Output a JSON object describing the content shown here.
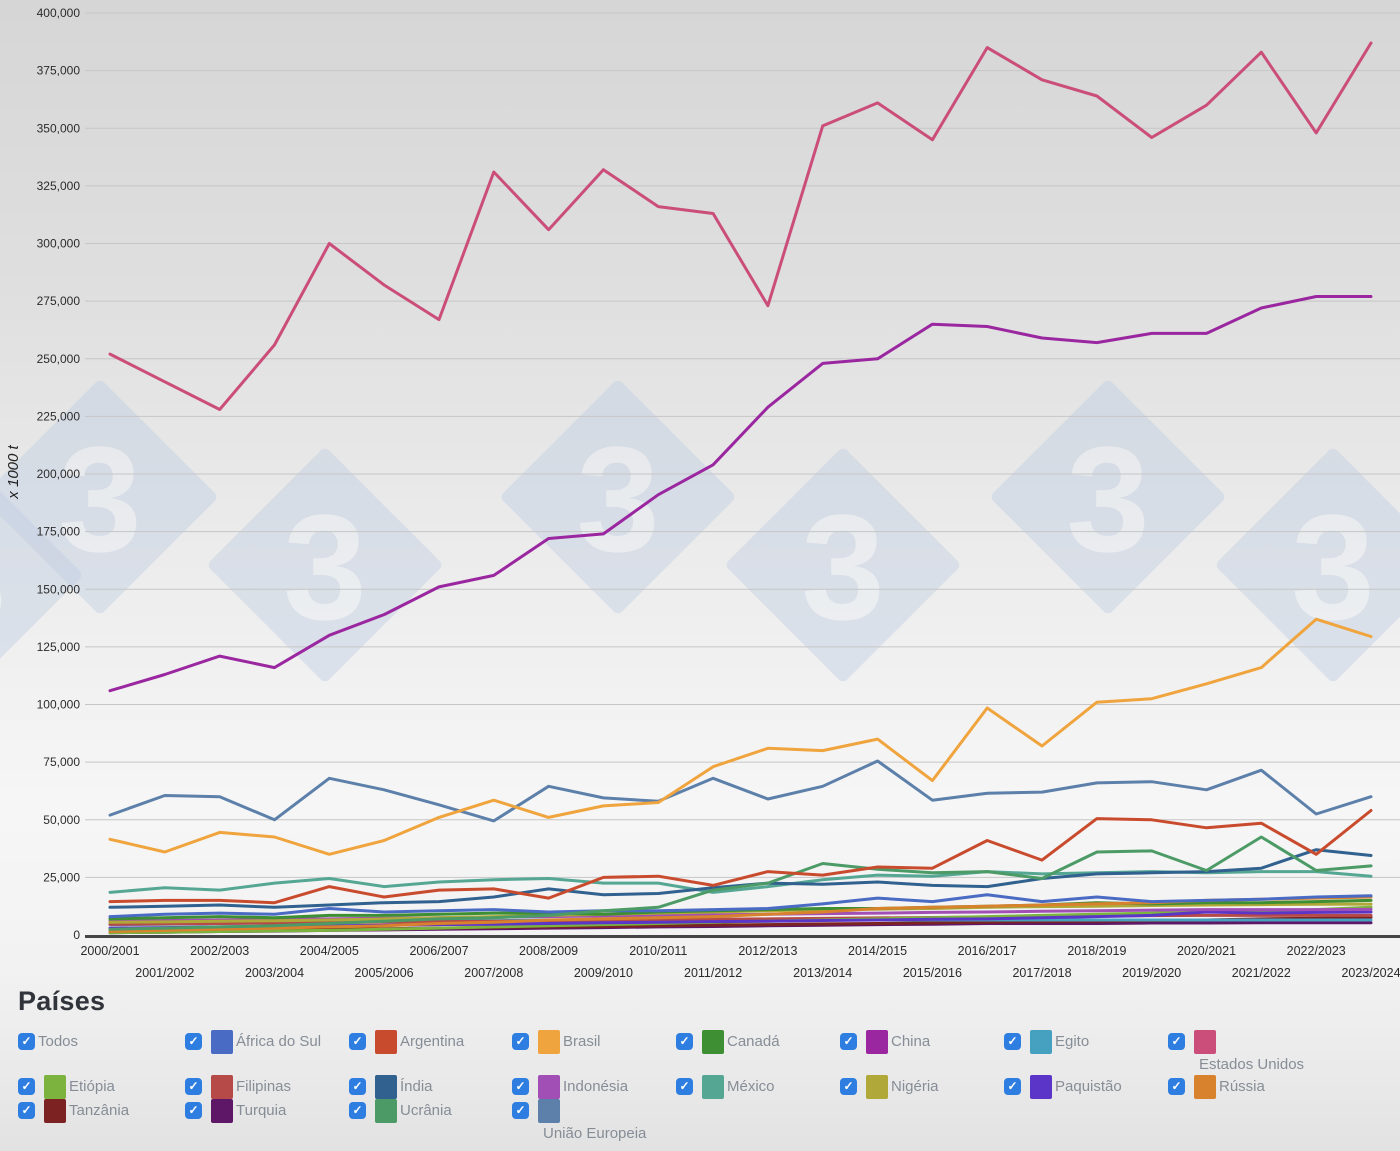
{
  "legend": {
    "title": "Países",
    "items": [
      {
        "label": "Todos",
        "color": null
      },
      {
        "label": "África do Sul",
        "color": "#4a6bc4"
      },
      {
        "label": "Argentina",
        "color": "#c94b2e"
      },
      {
        "label": "Brasil",
        "color": "#f0a43e"
      },
      {
        "label": "Canadá",
        "color": "#3e8e33"
      },
      {
        "label": "China",
        "color": "#9a27a0"
      },
      {
        "label": "Egito",
        "color": "#46a0c0"
      },
      {
        "label": "Estados Unidos",
        "color": "#cb4d79",
        "label_below": true
      },
      {
        "label": "Etiópia",
        "color": "#7cb33f"
      },
      {
        "label": "Filipinas",
        "color": "#b54a48"
      },
      {
        "label": "Índia",
        "color": "#30618f"
      },
      {
        "label": "Indonésia",
        "color": "#a24fb5"
      },
      {
        "label": "México",
        "color": "#55a794"
      },
      {
        "label": "Nigéria",
        "color": "#b0a838"
      },
      {
        "label": "Paquistão",
        "color": "#5b35c8"
      },
      {
        "label": "Rússia",
        "color": "#d8822e"
      },
      {
        "label": "Tanzânia",
        "color": "#7c2222"
      },
      {
        "label": "Turquia",
        "color": "#5d1766"
      },
      {
        "label": "Ucrânia",
        "color": "#4c9b66"
      },
      {
        "label": "União Europeia",
        "color": "#5d80aa",
        "label_below": true
      }
    ],
    "checkbox_color": "#2e7de1",
    "checkbox_glyph": "✓"
  },
  "watermark": {
    "glyph": "3",
    "shape": "diamond",
    "fill": "#bfcde2",
    "glyph_fill": "#e8eef6"
  },
  "chart_data": {
    "type": "line",
    "ylabel": "x 1000 t",
    "ylim": [
      0,
      400000
    ],
    "ytick_step": 25000,
    "grid": true,
    "legend_position": "bottom",
    "x_label_stagger": true,
    "categories": [
      "2000/2001",
      "2001/2002",
      "2002/2003",
      "2003/2004",
      "2004/2005",
      "2005/2006",
      "2006/2007",
      "2007/2008",
      "2008/2009",
      "2009/2010",
      "2010/2011",
      "2011/2012",
      "2012/2013",
      "2013/2014",
      "2014/2015",
      "2015/2016",
      "2016/2017",
      "2017/2018",
      "2018/2019",
      "2019/2020",
      "2020/2021",
      "2021/2022",
      "2022/2023",
      "2023/2024"
    ],
    "series": [
      {
        "name": "Turquia",
        "color": "#5d1766",
        "values": [
          1000,
          1200,
          1500,
          1700,
          2000,
          2200,
          2500,
          2700,
          3000,
          3200,
          3500,
          3700,
          4000,
          4200,
          4500,
          4700,
          5000,
          5000,
          5000,
          5200,
          5200,
          5300,
          5300,
          5300
        ]
      },
      {
        "name": "Tanzânia",
        "color": "#7c2222",
        "values": [
          1500,
          1700,
          2000,
          2200,
          2500,
          2700,
          3000,
          3200,
          3500,
          3700,
          4000,
          4300,
          4500,
          4800,
          5000,
          5300,
          5500,
          5800,
          6000,
          6300,
          6500,
          7000,
          7300,
          7700
        ]
      },
      {
        "name": "Egito",
        "color": "#46a0c0",
        "values": [
          4500,
          4700,
          5000,
          5200,
          5500,
          5700,
          6000,
          6200,
          6500,
          6500,
          6500,
          6500,
          6500,
          6500,
          6500,
          6500,
          6500,
          6500,
          6500,
          6500,
          6500,
          6500,
          6500,
          6500
        ]
      },
      {
        "name": "Filipinas",
        "color": "#b54a48",
        "values": [
          4600,
          4800,
          5000,
          5200,
          5400,
          5600,
          5800,
          6000,
          6200,
          6400,
          6600,
          6800,
          7000,
          7200,
          7400,
          7600,
          7800,
          8000,
          8200,
          8400,
          8500,
          8500,
          8500,
          8500
        ]
      },
      {
        "name": "Etiópia",
        "color": "#7cb33f",
        "values": [
          1000,
          1200,
          1500,
          1800,
          2000,
          2500,
          3000,
          3500,
          4000,
          4500,
          5000,
          5500,
          6000,
          6500,
          7000,
          7500,
          8000,
          8500,
          9000,
          9500,
          10000,
          10500,
          11000,
          12000
        ]
      },
      {
        "name": "Paquistão",
        "color": "#5b35c8",
        "values": [
          3000,
          3200,
          3500,
          3700,
          4000,
          4200,
          4500,
          4700,
          5000,
          5300,
          5500,
          5800,
          6000,
          6300,
          6500,
          6800,
          7000,
          7500,
          8000,
          8500,
          10000,
          9500,
          9800,
          10000
        ]
      },
      {
        "name": "Indonésia",
        "color": "#a24fb5",
        "values": [
          6000,
          6300,
          6500,
          6800,
          7000,
          7300,
          7500,
          7800,
          8000,
          8300,
          8500,
          8800,
          9000,
          9300,
          9500,
          9800,
          10000,
          10300,
          10500,
          10800,
          11000,
          11000,
          11000,
          11100
        ]
      },
      {
        "name": "Nigéria",
        "color": "#b0a838",
        "values": [
          5500,
          5700,
          6000,
          6200,
          6500,
          7000,
          7500,
          8000,
          8500,
          9000,
          9500,
          10000,
          10500,
          11000,
          11200,
          11500,
          12000,
          12300,
          12500,
          12800,
          13000,
          13200,
          13300,
          13400
        ]
      },
      {
        "name": "Canadá",
        "color": "#3e8e33",
        "values": [
          7000,
          7500,
          8000,
          7500,
          8500,
          8500,
          9000,
          9500,
          9500,
          9000,
          10000,
          10500,
          11000,
          11500,
          11500,
          12000,
          12500,
          13000,
          14000,
          13500,
          14000,
          14000,
          14500,
          15000
        ]
      },
      {
        "name": "Rússia",
        "color": "#d8822e",
        "values": [
          1500,
          2000,
          2500,
          3000,
          3500,
          4000,
          5000,
          5500,
          6500,
          7000,
          7500,
          8000,
          9000,
          10000,
          11500,
          12000,
          12500,
          13000,
          13500,
          14000,
          15000,
          15500,
          16000,
          16500
        ]
      },
      {
        "name": "África do Sul",
        "color": "#4a6bc4",
        "values": [
          8000,
          9000,
          9500,
          9000,
          11500,
          10000,
          10500,
          11000,
          10000,
          10500,
          10500,
          11000,
          11500,
          13500,
          16000,
          14500,
          17500,
          14500,
          16500,
          14500,
          15000,
          15500,
          16500,
          17000
        ]
      },
      {
        "name": "México",
        "color": "#55a794",
        "values": [
          18500,
          20500,
          19500,
          22500,
          24500,
          21000,
          23000,
          24000,
          24500,
          22500,
          22500,
          18500,
          21000,
          24000,
          26000,
          25500,
          27500,
          26500,
          27000,
          27500,
          27000,
          27500,
          27500,
          25500
        ]
      },
      {
        "name": "Índia",
        "color": "#30618f",
        "values": [
          12000,
          12500,
          13000,
          12000,
          13000,
          14000,
          14500,
          16500,
          20000,
          17500,
          18000,
          20500,
          22500,
          22000,
          23000,
          21500,
          21000,
          24500,
          26500,
          27000,
          27500,
          29000,
          37000,
          34500
        ]
      },
      {
        "name": "Ucrânia",
        "color": "#4c9b66",
        "values": [
          2500,
          3000,
          3500,
          4000,
          5000,
          6000,
          7000,
          7500,
          8500,
          10500,
          12000,
          19500,
          22500,
          31000,
          28500,
          27000,
          27500,
          24500,
          36000,
          36500,
          28000,
          42500,
          28000,
          30000
        ]
      },
      {
        "name": "Argentina",
        "color": "#c94b2e",
        "values": [
          14500,
          15000,
          15000,
          14000,
          21000,
          16500,
          19500,
          20000,
          16000,
          25000,
          25500,
          21500,
          27500,
          26000,
          29500,
          29000,
          41000,
          32500,
          50500,
          50000,
          46500,
          48500,
          35000,
          54000
        ]
      },
      {
        "name": "União Europeia",
        "color": "#5d80aa",
        "values": [
          52000,
          60500,
          60000,
          50000,
          68000,
          63000,
          56500,
          49500,
          64500,
          59500,
          58000,
          68000,
          59000,
          64500,
          75500,
          58500,
          61500,
          62000,
          66000,
          66500,
          63000,
          71500,
          52500,
          60000
        ]
      },
      {
        "name": "Brasil",
        "color": "#f0a43e",
        "values": [
          41500,
          36000,
          44500,
          42500,
          35000,
          41000,
          51000,
          58500,
          51000,
          56000,
          57500,
          73000,
          81000,
          80000,
          85000,
          67000,
          98500,
          82000,
          101000,
          102500,
          109000,
          116000,
          137000,
          129500
        ]
      },
      {
        "name": "China",
        "color": "#9a27a0",
        "values": [
          106000,
          113000,
          121000,
          116000,
          130000,
          139000,
          151000,
          156000,
          172000,
          174000,
          191000,
          204000,
          229000,
          248000,
          250000,
          265000,
          264000,
          259000,
          257000,
          261000,
          261000,
          272000,
          277000,
          277000
        ]
      },
      {
        "name": "Estados Unidos",
        "color": "#cb4d79",
        "values": [
          252000,
          240000,
          228000,
          256000,
          300000,
          282000,
          267000,
          331000,
          306000,
          332000,
          316000,
          313000,
          273000,
          351000,
          361000,
          345000,
          385000,
          371000,
          364000,
          346000,
          360000,
          383000,
          348000,
          387000
        ]
      }
    ]
  }
}
